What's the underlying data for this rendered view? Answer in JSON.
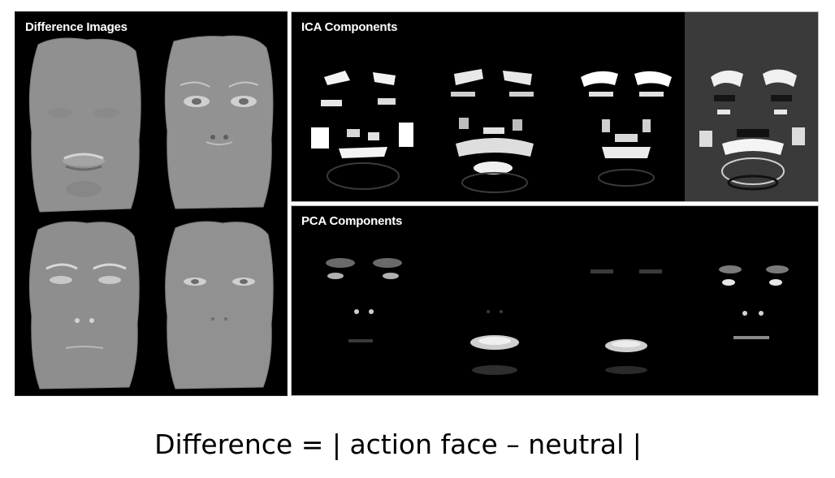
{
  "figure": {
    "difference_panel": {
      "title": "Difference Images",
      "faces": [
        "difference-face-1",
        "difference-face-2",
        "difference-face-3",
        "difference-face-4"
      ]
    },
    "ica_panel": {
      "title": "ICA Components",
      "components": [
        "ica-component-1",
        "ica-component-2",
        "ica-component-3",
        "ica-component-4"
      ]
    },
    "pca_panel": {
      "title": "PCA Components",
      "components": [
        "pca-component-1",
        "pca-component-2",
        "pca-component-3",
        "pca-component-4"
      ]
    }
  },
  "caption": "Difference = | action face – neutral |",
  "colors": {
    "panel_background": "#000000",
    "face_gray": "#8f8f8f",
    "caption_text": "#000000"
  }
}
